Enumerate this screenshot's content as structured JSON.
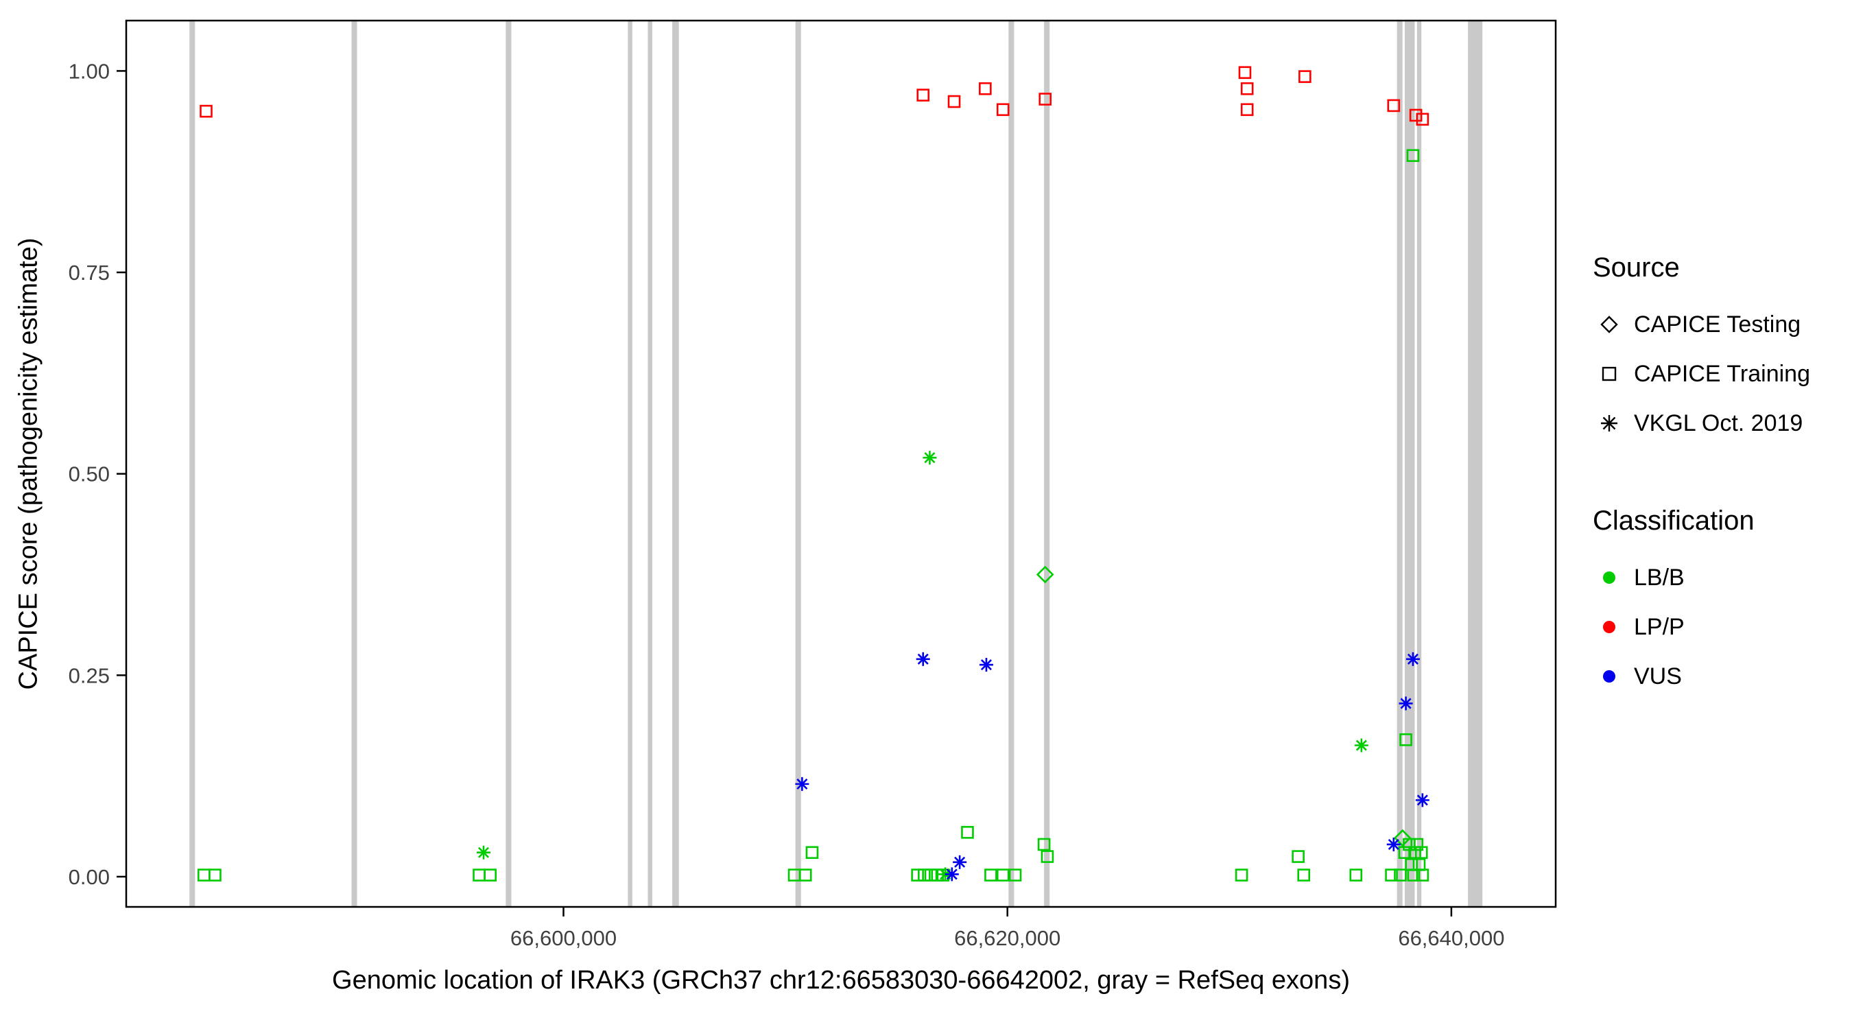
{
  "legend": {
    "source": {
      "title": "Source",
      "items": [
        {
          "label": "CAPICE Testing",
          "marker": "diamond"
        },
        {
          "label": "CAPICE Training",
          "marker": "square"
        },
        {
          "label": "VKGL Oct. 2019",
          "marker": "asterisk"
        }
      ]
    },
    "classification": {
      "title": "Classification",
      "items": [
        {
          "label": "LB/B",
          "color": "#00CC00"
        },
        {
          "label": "LP/P",
          "color": "#FF0000"
        },
        {
          "label": "VUS",
          "color": "#0000EE"
        }
      ]
    }
  },
  "chart_data": {
    "type": "scatter",
    "title": "",
    "xlabel": "Genomic location of IRAK3 (GRCh37 chr12:66583030-66642002, gray = RefSeq exons)",
    "ylabel": "CAPICE score (pathogenicity estimate)",
    "x_domain": [
      66580300,
      66644700
    ],
    "y_domain": [
      -0.0375,
      1.0625
    ],
    "grid": "off",
    "legend_position": "right",
    "x_ticks": [
      {
        "value": 66600000,
        "label": "66,600,000"
      },
      {
        "value": 66620000,
        "label": "66,620,000"
      },
      {
        "value": 66640000,
        "label": "66,640,000"
      }
    ],
    "y_ticks": [
      {
        "value": 0.0,
        "label": "0.00"
      },
      {
        "value": 0.25,
        "label": "0.25"
      },
      {
        "value": 0.5,
        "label": "0.50"
      },
      {
        "value": 0.75,
        "label": "0.75"
      },
      {
        "value": 1.0,
        "label": "1.00"
      }
    ],
    "exon_color": "#C9C9C9",
    "exons": [
      [
        66583150,
        66583400
      ],
      [
        66590450,
        66590700
      ],
      [
        66597400,
        66597650
      ],
      [
        66602900,
        66603100
      ],
      [
        66603800,
        66604000
      ],
      [
        66604900,
        66605200
      ],
      [
        66610450,
        66610700
      ],
      [
        66620050,
        66620300
      ],
      [
        66621650,
        66621900
      ],
      [
        66637550,
        66637800
      ],
      [
        66637900,
        66638350
      ],
      [
        66638450,
        66638650
      ],
      [
        66640750,
        66641400
      ]
    ],
    "series": [
      {
        "source": "CAPICE Training",
        "classification": "LP/P",
        "marker": "square",
        "color": "#FF0000",
        "points": [
          [
            66583900,
            0.95
          ],
          [
            66616200,
            0.97
          ],
          [
            66617600,
            0.962
          ],
          [
            66619000,
            0.978
          ],
          [
            66619800,
            0.952
          ],
          [
            66621700,
            0.965
          ],
          [
            66630700,
            0.998
          ],
          [
            66630800,
            0.978
          ],
          [
            66630800,
            0.952
          ],
          [
            66633400,
            0.993
          ],
          [
            66637400,
            0.957
          ],
          [
            66638400,
            0.945
          ],
          [
            66638700,
            0.94
          ]
        ]
      },
      {
        "source": "CAPICE Training",
        "classification": "LB/B",
        "marker": "square",
        "color": "#00CC00",
        "points": [
          [
            66583800,
            0.002
          ],
          [
            66584300,
            0.002
          ],
          [
            66596200,
            0.002
          ],
          [
            66596700,
            0.002
          ],
          [
            66610400,
            0.002
          ],
          [
            66610900,
            0.002
          ],
          [
            66611200,
            0.03
          ],
          [
            66615950,
            0.002
          ],
          [
            66616250,
            0.002
          ],
          [
            66616550,
            0.002
          ],
          [
            66616850,
            0.002
          ],
          [
            66617100,
            0.002
          ],
          [
            66618200,
            0.055
          ],
          [
            66619250,
            0.002
          ],
          [
            66619800,
            0.002
          ],
          [
            66620350,
            0.002
          ],
          [
            66621650,
            0.04
          ],
          [
            66621800,
            0.025
          ],
          [
            66630550,
            0.002
          ],
          [
            66633100,
            0.025
          ],
          [
            66633350,
            0.002
          ],
          [
            66635700,
            0.002
          ],
          [
            66637300,
            0.002
          ],
          [
            66637700,
            0.002
          ],
          [
            66637950,
            0.17
          ],
          [
            66638270,
            0.895
          ],
          [
            66637900,
            0.03
          ],
          [
            66638100,
            0.04
          ],
          [
            66638200,
            0.015
          ],
          [
            66638350,
            0.03
          ],
          [
            66638450,
            0.04
          ],
          [
            66638550,
            0.015
          ],
          [
            66638650,
            0.03
          ],
          [
            66638300,
            0.002
          ],
          [
            66638700,
            0.002
          ]
        ]
      },
      {
        "source": "CAPICE Testing",
        "classification": "LB/B",
        "marker": "diamond",
        "color": "#00CC00",
        "points": [
          [
            66621700,
            0.375
          ],
          [
            66637800,
            0.048
          ]
        ]
      },
      {
        "source": "VKGL Oct. 2019",
        "classification": "LB/B",
        "marker": "asterisk",
        "color": "#00CC00",
        "points": [
          [
            66596400,
            0.03
          ],
          [
            66616500,
            0.52
          ],
          [
            66617200,
            0.003
          ],
          [
            66635950,
            0.163
          ]
        ]
      },
      {
        "source": "VKGL Oct. 2019",
        "classification": "VUS",
        "marker": "asterisk",
        "color": "#0000EE",
        "points": [
          [
            66610750,
            0.115
          ],
          [
            66616200,
            0.27
          ],
          [
            66617500,
            0.003
          ],
          [
            66617850,
            0.018
          ],
          [
            66619050,
            0.263
          ],
          [
            66637400,
            0.04
          ],
          [
            66637950,
            0.215
          ],
          [
            66638270,
            0.27
          ],
          [
            66638700,
            0.095
          ]
        ]
      }
    ]
  }
}
